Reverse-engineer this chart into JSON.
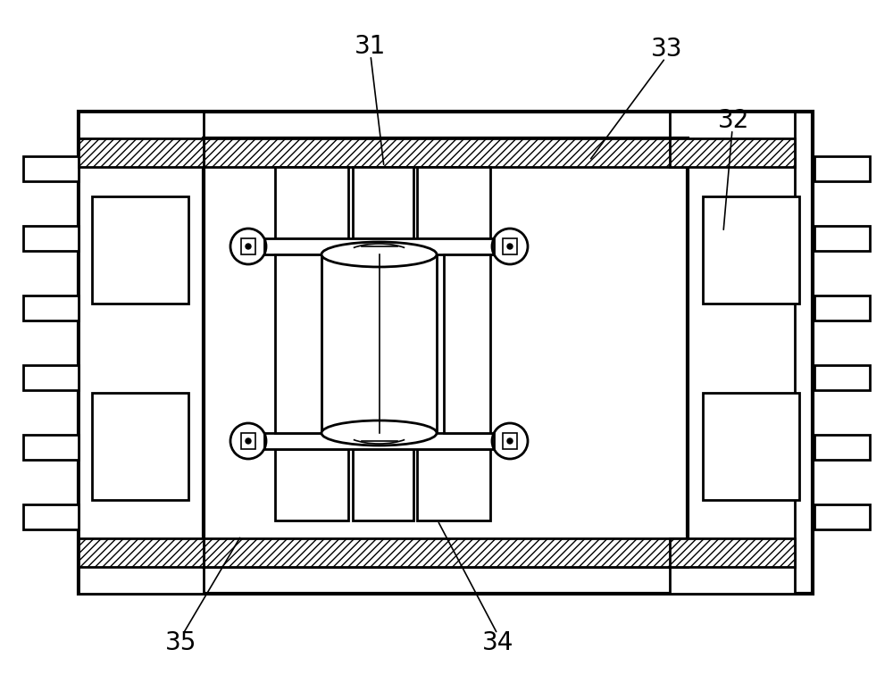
{
  "bg_color": "#ffffff",
  "line_color": "#000000",
  "lw_thin": 1.2,
  "lw_med": 2.0,
  "lw_thick": 3.0,
  "label_fontsize": 20,
  "fig_width": 10.0,
  "fig_height": 7.74
}
